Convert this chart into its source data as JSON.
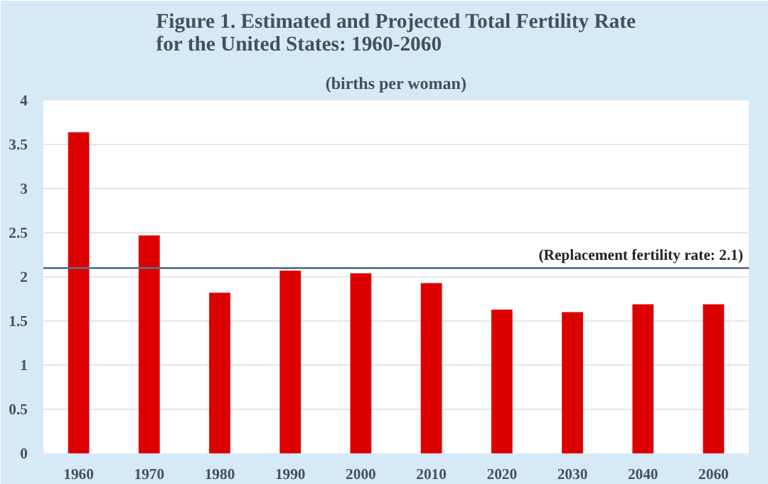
{
  "chart_data": {
    "type": "bar",
    "title": "Figure 1. Estimated and Projected Total Fertility Rate\nfor the United States: 1960-2060",
    "subtitle": "(births per woman)",
    "categories": [
      "1960",
      "1970",
      "1980",
      "1990",
      "2000",
      "2010",
      "2020",
      "2030",
      "2040",
      "2060"
    ],
    "values": [
      3.64,
      2.47,
      1.82,
      2.07,
      2.04,
      1.93,
      1.63,
      1.6,
      1.69,
      1.69
    ],
    "color": "#dd0000",
    "ylim": [
      0,
      4
    ],
    "yticks": [
      0,
      0.5,
      1,
      1.5,
      2,
      2.5,
      3,
      3.5,
      4
    ],
    "grid": "y",
    "ref_lines": [
      {
        "axis": "y",
        "value": 2.1,
        "label": "(Replacement fertility rate: 2.1)",
        "color": "#5b6f86"
      }
    ]
  }
}
